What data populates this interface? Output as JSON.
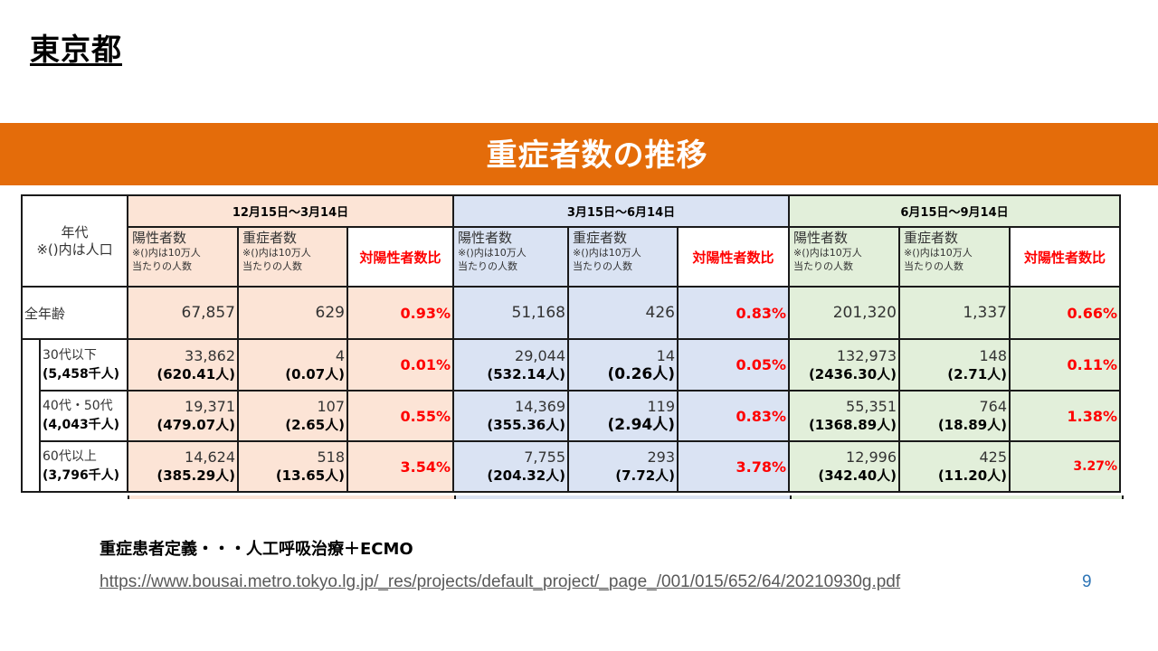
{
  "region_title": "東京都",
  "banner_title": "重症者数の推移",
  "table": {
    "age_header_line1": "年代",
    "age_header_line2": "※()内は人口",
    "periods": [
      {
        "label": "12月15日～3月14日"
      },
      {
        "label": "3月15日～6月14日"
      },
      {
        "label": "6月15日～9月14日"
      }
    ],
    "sub_headers": {
      "positive": "陽性者数",
      "severe": "重症者数",
      "note_line1": "※()内は10万人",
      "note_line2": "当たりの人数",
      "ratio": "対陽性者数比"
    },
    "rows": [
      {
        "label": "全年齢",
        "cells": [
          {
            "positive": "67,857",
            "severe": "629",
            "ratio": "0.93%"
          },
          {
            "positive": "51,168",
            "severe": "426",
            "ratio": "0.83%"
          },
          {
            "positive": "201,320",
            "severe": "1,337",
            "ratio": "0.66%"
          }
        ]
      },
      {
        "label": "30代以下",
        "population": "(5,458千人)",
        "cells": [
          {
            "positive": "33,862",
            "positive_per100k": "(620.41人)",
            "severe": "4",
            "severe_per100k": "(0.07人)",
            "ratio": "0.01%"
          },
          {
            "positive": "29,044",
            "positive_per100k": "(532.14人)",
            "severe": "14",
            "severe_per100k": "(0.26人)",
            "ratio": "0.05%"
          },
          {
            "positive": "132,973",
            "positive_per100k": "(2436.30人)",
            "severe": "148",
            "severe_per100k": "(2.71人)",
            "ratio": "0.11%"
          }
        ]
      },
      {
        "label": "40代・50代",
        "population": "(4,043千人)",
        "cells": [
          {
            "positive": "19,371",
            "positive_per100k": "(479.07人)",
            "severe": "107",
            "severe_per100k": "(2.65人)",
            "ratio": "0.55%"
          },
          {
            "positive": "14,369",
            "positive_per100k": "(355.36人)",
            "severe": "119",
            "severe_per100k": "(2.94人)",
            "ratio": "0.83%"
          },
          {
            "positive": "55,351",
            "positive_per100k": "(1368.89人)",
            "severe": "764",
            "severe_per100k": "(18.89人)",
            "ratio": "1.38%"
          }
        ]
      },
      {
        "label": "60代以上",
        "population": "(3,796千人)",
        "cells": [
          {
            "positive": "14,624",
            "positive_per100k": "(385.29人)",
            "severe": "518",
            "severe_per100k": "(13.65人)",
            "ratio": "3.54%"
          },
          {
            "positive": "7,755",
            "positive_per100k": "(204.32人)",
            "severe": "293",
            "severe_per100k": "(7.72人)",
            "ratio": "3.78%"
          },
          {
            "positive": "12,996",
            "positive_per100k": "(342.40人)",
            "severe": "425",
            "severe_per100k": "(11.20人)",
            "ratio": "3.27%"
          }
        ]
      }
    ]
  },
  "definition_text": "重症患者定義・・・人工呼吸治療＋ECMO",
  "source_url": "https://www.bousai.metro.tokyo.lg.jp/_res/projects/default_project/_page_/001/015/652/64/20210930g.pdf",
  "page_number": "9",
  "colors": {
    "banner": "#e46c0a",
    "period1": "#fce4d6",
    "period2": "#dae3f3",
    "period3": "#e2efda",
    "ratio_text": "#ff0000",
    "page_number": "#2e75b6"
  }
}
